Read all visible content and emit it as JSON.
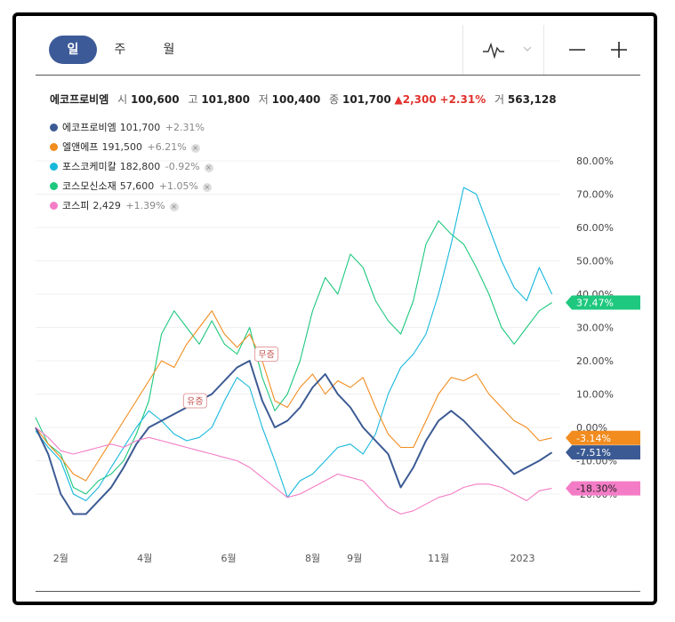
{
  "tabs": {
    "day": "일",
    "week": "주",
    "month": "월"
  },
  "quote": {
    "name": "에코프로비엠",
    "open_label": "시",
    "open": "100,600",
    "high_label": "고",
    "high": "101,800",
    "low_label": "저",
    "low": "100,400",
    "close_label": "종",
    "close": "101,700",
    "change": "▲2,300",
    "change_pct": "+2.31%",
    "volume_label": "거",
    "volume": "563,128"
  },
  "legend": [
    {
      "name": "에코프로비엠",
      "price": "101,700",
      "change": "+2.31%",
      "color": "#3b5a93",
      "removable": false
    },
    {
      "name": "엘앤에프",
      "price": "191,500",
      "change": "+6.21%",
      "color": "#f28c1e",
      "removable": true
    },
    {
      "name": "포스코케미칼",
      "price": "182,800",
      "change": "-0.92%",
      "color": "#17b8dc",
      "removable": true
    },
    {
      "name": "코스모신소재",
      "price": "57,600",
      "change": "+1.05%",
      "color": "#1ec87e",
      "removable": true
    },
    {
      "name": "코스피",
      "price": "2,429",
      "change": "+1.39%",
      "color": "#f47cc6",
      "removable": true
    }
  ],
  "chart_data": {
    "type": "line",
    "y_tick_labels": [
      "80.00%",
      "70.00%",
      "60.00%",
      "50.00%",
      "40.00%",
      "30.00%",
      "20.00%",
      "10.00%",
      "0.00%",
      "-10.00%",
      "-20.00%"
    ],
    "ylim": [
      -28,
      85
    ],
    "x_tick_labels": [
      {
        "label": "2월",
        "x": 0.6
      },
      {
        "label": "4월",
        "x": 2.6
      },
      {
        "label": "6월",
        "x": 4.6
      },
      {
        "label": "8월",
        "x": 6.6
      },
      {
        "label": "9월",
        "x": 7.6
      },
      {
        "label": "11월",
        "x": 9.6
      },
      {
        "label": "2023",
        "x": 11.6
      }
    ],
    "xlim": [
      0,
      12.5
    ],
    "annotations": [
      {
        "text": "유증",
        "x": 3.8,
        "y": 8
      },
      {
        "text": "무증",
        "x": 5.5,
        "y": 22
      }
    ],
    "end_badges": [
      {
        "series": "코스모신소재",
        "label": "37.47%",
        "value": 37.47
      },
      {
        "series": "엘앤에프",
        "label": "-3.14%",
        "value": -3.14
      },
      {
        "series": "에코프로비엠",
        "label": "-7.51%",
        "value": -7.51
      },
      {
        "series": "코스피",
        "label": "-18.30%",
        "value": -18.3
      }
    ],
    "series": [
      {
        "name": "코스모신소재",
        "color": "#1ec87e",
        "x": [
          0,
          0.3,
          0.6,
          0.9,
          1.2,
          1.5,
          1.8,
          2.1,
          2.4,
          2.7,
          3.0,
          3.3,
          3.6,
          3.9,
          4.2,
          4.5,
          4.8,
          5.1,
          5.4,
          5.7,
          6.0,
          6.3,
          6.6,
          6.9,
          7.2,
          7.5,
          7.8,
          8.1,
          8.4,
          8.7,
          9.0,
          9.3,
          9.6,
          9.9,
          10.2,
          10.5,
          10.8,
          11.1,
          11.4,
          11.7,
          12.0,
          12.3
        ],
        "values": [
          3,
          -5,
          -8,
          -18,
          -20,
          -16,
          -14,
          -10,
          -2,
          8,
          28,
          35,
          30,
          25,
          32,
          25,
          22,
          30,
          15,
          5,
          10,
          20,
          35,
          45,
          40,
          52,
          48,
          38,
          32,
          28,
          38,
          55,
          62,
          58,
          55,
          48,
          40,
          30,
          25,
          30,
          35,
          37.47
        ]
      },
      {
        "name": "포스코케미칼",
        "color": "#17b8dc",
        "x": [
          0,
          0.3,
          0.6,
          0.9,
          1.2,
          1.5,
          1.8,
          2.1,
          2.4,
          2.7,
          3.0,
          3.3,
          3.6,
          3.9,
          4.2,
          4.5,
          4.8,
          5.1,
          5.4,
          5.7,
          6.0,
          6.3,
          6.6,
          6.9,
          7.2,
          7.5,
          7.8,
          8.1,
          8.4,
          8.7,
          9.0,
          9.3,
          9.6,
          9.9,
          10.2,
          10.5,
          10.8,
          11.1,
          11.4,
          11.7,
          12.0,
          12.3
        ],
        "values": [
          -1,
          -6,
          -10,
          -20,
          -22,
          -18,
          -12,
          -6,
          0,
          5,
          2,
          -2,
          -4,
          -3,
          0,
          8,
          15,
          12,
          0,
          -10,
          -21,
          -16,
          -14,
          -10,
          -6,
          -5,
          -8,
          -2,
          10,
          18,
          22,
          28,
          40,
          55,
          72,
          70,
          60,
          50,
          42,
          38,
          48,
          40
        ]
      },
      {
        "name": "엘앤에프",
        "color": "#f28c1e",
        "x": [
          0,
          0.3,
          0.6,
          0.9,
          1.2,
          1.5,
          1.8,
          2.1,
          2.4,
          2.7,
          3.0,
          3.3,
          3.6,
          3.9,
          4.2,
          4.5,
          4.8,
          5.1,
          5.4,
          5.7,
          6.0,
          6.3,
          6.6,
          6.9,
          7.2,
          7.5,
          7.8,
          8.1,
          8.4,
          8.7,
          9.0,
          9.3,
          9.6,
          9.9,
          10.2,
          10.5,
          10.8,
          11.1,
          11.4,
          11.7,
          12.0,
          12.3
        ],
        "values": [
          0,
          -5,
          -9,
          -14,
          -16,
          -10,
          -4,
          2,
          8,
          14,
          20,
          18,
          25,
          30,
          35,
          28,
          24,
          28,
          20,
          8,
          6,
          12,
          16,
          10,
          14,
          12,
          15,
          6,
          -2,
          -6,
          -6,
          2,
          10,
          15,
          14,
          16,
          10,
          6,
          2,
          0,
          -4,
          -3.14
        ]
      },
      {
        "name": "에코프로비엠",
        "color": "#3b5a93",
        "x": [
          0,
          0.3,
          0.6,
          0.9,
          1.2,
          1.5,
          1.8,
          2.1,
          2.4,
          2.7,
          3.0,
          3.3,
          3.6,
          3.9,
          4.2,
          4.5,
          4.8,
          5.1,
          5.4,
          5.7,
          6.0,
          6.3,
          6.6,
          6.9,
          7.2,
          7.5,
          7.8,
          8.1,
          8.4,
          8.7,
          9.0,
          9.3,
          9.6,
          9.9,
          10.2,
          10.5,
          10.8,
          11.1,
          11.4,
          11.7,
          12.0,
          12.3
        ],
        "values": [
          0,
          -8,
          -20,
          -26,
          -26,
          -22,
          -18,
          -12,
          -5,
          0,
          2,
          4,
          6,
          8,
          10,
          14,
          18,
          20,
          8,
          0,
          2,
          6,
          12,
          16,
          10,
          6,
          0,
          -4,
          -8,
          -18,
          -12,
          -4,
          2,
          5,
          2,
          -2,
          -6,
          -10,
          -14,
          -12,
          -10,
          -7.51
        ]
      },
      {
        "name": "코스피",
        "color": "#f47cc6",
        "x": [
          0,
          0.3,
          0.6,
          0.9,
          1.2,
          1.5,
          1.8,
          2.1,
          2.4,
          2.7,
          3.0,
          3.3,
          3.6,
          3.9,
          4.2,
          4.5,
          4.8,
          5.1,
          5.4,
          5.7,
          6.0,
          6.3,
          6.6,
          6.9,
          7.2,
          7.5,
          7.8,
          8.1,
          8.4,
          8.7,
          9.0,
          9.3,
          9.6,
          9.9,
          10.2,
          10.5,
          10.8,
          11.1,
          11.4,
          11.7,
          12.0,
          12.3
        ],
        "values": [
          0,
          -3,
          -7,
          -8,
          -7,
          -6,
          -5,
          -6,
          -4,
          -3,
          -4,
          -5,
          -6,
          -7,
          -8,
          -9,
          -10,
          -12,
          -15,
          -18,
          -21,
          -20,
          -18,
          -16,
          -14,
          -15,
          -16,
          -20,
          -24,
          -26,
          -25,
          -23,
          -21,
          -20,
          -18,
          -17,
          -17,
          -18,
          -20,
          -22,
          -19,
          -18.3
        ]
      }
    ]
  }
}
